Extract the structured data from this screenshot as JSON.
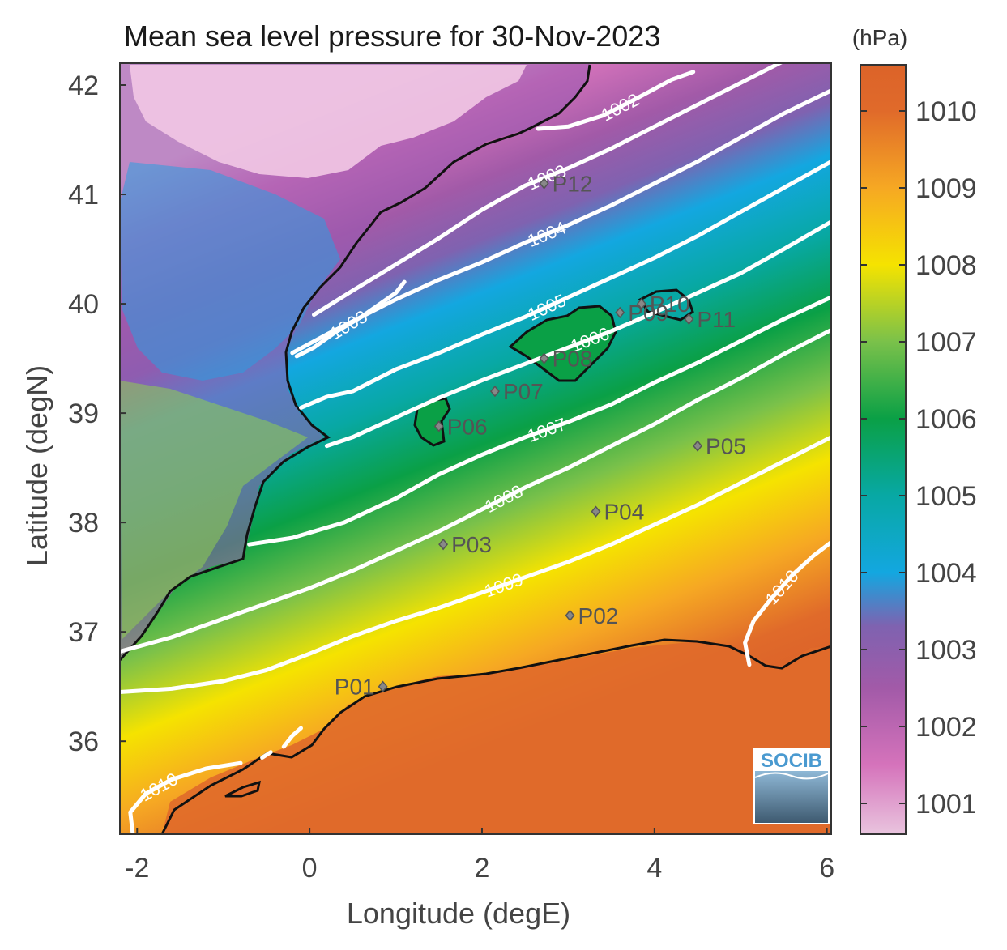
{
  "chart_data": {
    "type": "heatmap",
    "title": "Mean sea level pressure for 30-Nov-2023",
    "xlabel": "Longitude (degE)",
    "ylabel": "Latitude (degN)",
    "xlim": [
      -2.2,
      6.05
    ],
    "ylim": [
      35.15,
      42.2
    ],
    "x_ticks": [
      -2,
      0,
      2,
      4,
      6
    ],
    "y_ticks": [
      36,
      37,
      38,
      39,
      40,
      41,
      42
    ],
    "colorbar": {
      "unit": "(hPa)",
      "range": [
        1000.6,
        1010.6
      ],
      "ticks": [
        1001,
        1002,
        1003,
        1004,
        1005,
        1006,
        1007,
        1008,
        1009,
        1010
      ],
      "colors": {
        "1000.6": "#e9c4de",
        "1001.5": "#d573bb",
        "1002.5": "#a25aa8",
        "1003.3": "#7f62b0",
        "1004.0": "#13a7e0",
        "1005.0": "#08a8a4",
        "1006.0": "#0aa046",
        "1007.0": "#7ac14a",
        "1008.0": "#f5e300",
        "1009.0": "#f6a823",
        "1010.0": "#e06a2a",
        "1010.6": "#dc6329"
      }
    },
    "contours": [
      {
        "level": 1002,
        "label": "1002",
        "points": [
          [
            2.65,
            41.6
          ],
          [
            3.0,
            41.62
          ],
          [
            3.4,
            41.72
          ],
          [
            3.8,
            41.88
          ],
          [
            4.2,
            42.05
          ],
          [
            4.45,
            42.12
          ]
        ]
      },
      {
        "level": 1003,
        "label": "1003",
        "points": [
          [
            0.05,
            39.9
          ],
          [
            0.5,
            40.12
          ],
          [
            1.0,
            40.36
          ],
          [
            1.5,
            40.6
          ],
          [
            2.0,
            40.86
          ],
          [
            2.5,
            41.08
          ],
          [
            3.0,
            41.24
          ],
          [
            3.5,
            41.42
          ],
          [
            4.0,
            41.62
          ],
          [
            4.5,
            41.82
          ],
          [
            5.0,
            42.02
          ],
          [
            5.5,
            42.22
          ]
        ]
      },
      {
        "level": 1003,
        "label": "1003",
        "points": [
          [
            -0.15,
            39.52
          ],
          [
            0.05,
            39.6
          ],
          [
            0.3,
            39.74
          ],
          [
            0.6,
            39.88
          ],
          [
            1.0,
            40.1
          ],
          [
            1.1,
            40.2
          ]
        ]
      },
      {
        "level": 1004,
        "label": "1004",
        "points": [
          [
            -0.2,
            39.55
          ],
          [
            0.2,
            39.72
          ],
          [
            0.6,
            39.88
          ],
          [
            1.0,
            40.04
          ],
          [
            1.5,
            40.22
          ],
          [
            2.0,
            40.38
          ],
          [
            2.5,
            40.56
          ],
          [
            3.0,
            40.72
          ],
          [
            3.5,
            40.9
          ],
          [
            4.0,
            41.1
          ],
          [
            4.5,
            41.3
          ],
          [
            5.0,
            41.52
          ],
          [
            5.5,
            41.74
          ],
          [
            6.05,
            41.95
          ]
        ]
      },
      {
        "level": 1005,
        "label": "1005",
        "points": [
          [
            -0.1,
            39.05
          ],
          [
            0.2,
            39.15
          ],
          [
            0.5,
            39.2
          ],
          [
            1.0,
            39.4
          ],
          [
            1.5,
            39.55
          ],
          [
            2.0,
            39.72
          ],
          [
            2.5,
            39.88
          ],
          [
            3.0,
            40.06
          ],
          [
            3.5,
            40.24
          ],
          [
            4.0,
            40.42
          ],
          [
            4.5,
            40.62
          ],
          [
            5.0,
            40.84
          ],
          [
            5.5,
            41.06
          ],
          [
            6.05,
            41.3
          ]
        ]
      },
      {
        "level": 1006,
        "label": "1006",
        "points": [
          [
            0.2,
            38.7
          ],
          [
            0.5,
            38.78
          ],
          [
            1.0,
            38.96
          ],
          [
            1.5,
            39.14
          ],
          [
            2.0,
            39.3
          ],
          [
            2.5,
            39.45
          ],
          [
            3.0,
            39.6
          ],
          [
            3.5,
            39.75
          ],
          [
            4.0,
            39.92
          ],
          [
            4.5,
            40.1
          ],
          [
            5.0,
            40.28
          ],
          [
            5.5,
            40.5
          ],
          [
            6.05,
            40.75
          ]
        ]
      },
      {
        "level": 1007,
        "label": "1007",
        "points": [
          [
            -0.7,
            37.8
          ],
          [
            -0.2,
            37.86
          ],
          [
            0.4,
            38.0
          ],
          [
            1.0,
            38.22
          ],
          [
            1.5,
            38.44
          ],
          [
            2.0,
            38.62
          ],
          [
            2.5,
            38.78
          ],
          [
            3.0,
            38.92
          ],
          [
            3.5,
            39.08
          ],
          [
            4.0,
            39.28
          ],
          [
            4.5,
            39.46
          ],
          [
            5.0,
            39.66
          ],
          [
            5.5,
            39.86
          ],
          [
            6.05,
            40.06
          ]
        ]
      },
      {
        "level": 1008,
        "label": "1008",
        "points": [
          [
            -2.2,
            36.82
          ],
          [
            -1.6,
            36.95
          ],
          [
            -1.0,
            37.12
          ],
          [
            -0.5,
            37.26
          ],
          [
            0.0,
            37.4
          ],
          [
            0.5,
            37.56
          ],
          [
            1.0,
            37.74
          ],
          [
            1.5,
            37.92
          ],
          [
            2.0,
            38.12
          ],
          [
            2.5,
            38.32
          ],
          [
            3.0,
            38.5
          ],
          [
            3.5,
            38.7
          ],
          [
            4.0,
            38.9
          ],
          [
            4.5,
            39.12
          ],
          [
            5.0,
            39.32
          ],
          [
            5.5,
            39.54
          ],
          [
            6.05,
            39.76
          ]
        ]
      },
      {
        "level": 1009,
        "label": "1009",
        "points": [
          [
            -2.2,
            36.45
          ],
          [
            -1.6,
            36.48
          ],
          [
            -1.0,
            36.55
          ],
          [
            -0.5,
            36.65
          ],
          [
            0.0,
            36.8
          ],
          [
            0.5,
            36.96
          ],
          [
            1.0,
            37.1
          ],
          [
            1.5,
            37.22
          ],
          [
            2.0,
            37.36
          ],
          [
            2.5,
            37.5
          ],
          [
            3.0,
            37.64
          ],
          [
            3.5,
            37.8
          ],
          [
            4.0,
            37.98
          ],
          [
            4.5,
            38.16
          ],
          [
            5.0,
            38.36
          ],
          [
            5.5,
            38.56
          ],
          [
            6.05,
            38.78
          ]
        ]
      },
      {
        "level": 1010,
        "label": "1010",
        "points": [
          [
            -2.05,
            35.15
          ],
          [
            -2.08,
            35.35
          ],
          [
            -1.9,
            35.52
          ],
          [
            -1.6,
            35.65
          ],
          [
            -1.2,
            35.75
          ],
          [
            -0.8,
            35.8
          ]
        ]
      },
      {
        "level": 1010,
        "label": "1010",
        "points": [
          [
            5.1,
            36.7
          ],
          [
            5.05,
            36.9
          ],
          [
            5.15,
            37.1
          ],
          [
            5.35,
            37.3
          ],
          [
            5.6,
            37.52
          ],
          [
            5.85,
            37.7
          ],
          [
            6.05,
            37.82
          ]
        ]
      },
      {
        "level": 1010,
        "label": "",
        "points": [
          [
            -0.55,
            35.85
          ],
          [
            -0.45,
            35.9
          ]
        ]
      },
      {
        "level": 1010,
        "label": "",
        "points": [
          [
            -0.3,
            35.95
          ],
          [
            -0.2,
            36.05
          ],
          [
            -0.1,
            36.12
          ]
        ]
      }
    ],
    "stations": [
      {
        "name": "P01",
        "lon": 0.85,
        "lat": 36.5
      },
      {
        "name": "P02",
        "lon": 3.02,
        "lat": 37.15
      },
      {
        "name": "P03",
        "lon": 1.55,
        "lat": 37.8
      },
      {
        "name": "P04",
        "lon": 3.32,
        "lat": 38.1
      },
      {
        "name": "P05",
        "lon": 4.5,
        "lat": 38.7
      },
      {
        "name": "P06",
        "lon": 1.5,
        "lat": 38.88
      },
      {
        "name": "P07",
        "lon": 2.15,
        "lat": 39.2
      },
      {
        "name": "P08",
        "lon": 2.72,
        "lat": 39.5
      },
      {
        "name": "P09",
        "lon": 3.6,
        "lat": 39.92
      },
      {
        "name": "P10",
        "lon": 3.85,
        "lat": 40.0
      },
      {
        "name": "P11",
        "lon": 4.4,
        "lat": 39.86
      },
      {
        "name": "P12",
        "lon": 2.72,
        "lat": 41.1
      }
    ]
  },
  "logo": {
    "text": "SOCIB"
  }
}
